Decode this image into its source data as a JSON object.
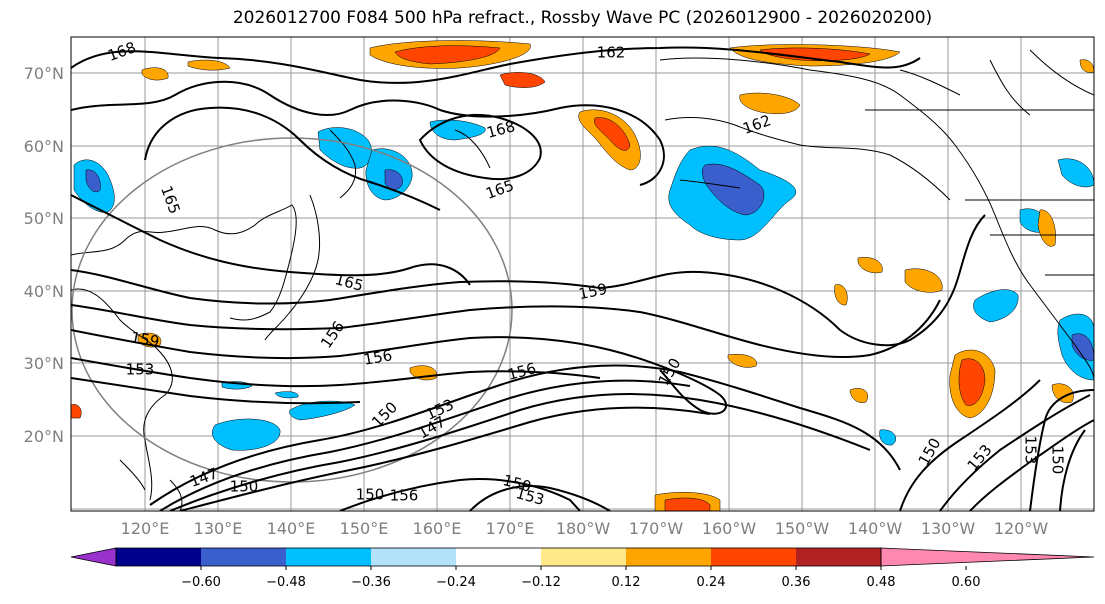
{
  "title": "2026012700 F084 500 hPa refract., Rossby Wave PC (2026012900 - 2026020200)",
  "lat_labels": [
    "70°N",
    "60°N",
    "50°N",
    "40°N",
    "30°N",
    "20°N"
  ],
  "lon_labels": [
    "120°E",
    "130°E",
    "140°E",
    "150°E",
    "160°E",
    "170°E",
    "180°W",
    "170°W",
    "160°W",
    "150°W",
    "140°W",
    "130°W",
    "120°W"
  ],
  "contour_labels": [
    "168",
    "162",
    "168",
    "162",
    "165",
    "165",
    "165",
    "159",
    "156",
    "159",
    "156",
    "153",
    "156",
    "150",
    "150",
    "153",
    "147",
    "150",
    "147",
    "153",
    "150",
    "150",
    "153",
    "153",
    "150",
    "156",
    "150"
  ],
  "colorbar": {
    "ticks": [
      "−0.60",
      "−0.48",
      "−0.36",
      "−0.24",
      "−0.12",
      "0.12",
      "0.24",
      "0.36",
      "0.48",
      "0.60"
    ],
    "colors": [
      "#9932cc",
      "#00008b",
      "#3a5fcd",
      "#00bfff",
      "#b2e3fb",
      "#ffffff",
      "#ffe98a",
      "#ffa500",
      "#ff4500",
      "#b22222",
      "#ff88b0"
    ]
  }
}
